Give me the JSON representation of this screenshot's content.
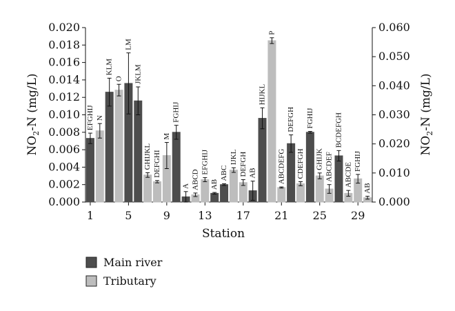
{
  "chart_data": {
    "type": "bar",
    "xlabel": "Station",
    "ylabel_left": "NO2-N (mg/L)",
    "ylabel_right": "NO2-N (mg/L)",
    "ylim_left": [
      0,
      0.02
    ],
    "ylim_right": [
      0,
      0.06
    ],
    "yticks_left": [
      "0.000",
      "0.002",
      "0.004",
      "0.006",
      "0.008",
      "0.010",
      "0.012",
      "0.014",
      "0.016",
      "0.018",
      "0.020"
    ],
    "yticks_right": [
      "0.000",
      "0.010",
      "0.020",
      "0.030",
      "0.040",
      "0.050",
      "0.060"
    ],
    "xticks": [
      "1",
      "5",
      "9",
      "13",
      "17",
      "21",
      "25",
      "29"
    ],
    "grid": false,
    "legend_position": "bottom-left",
    "series": [
      {
        "name": "Main river",
        "color": "#4d4d4d",
        "axis": "left"
      },
      {
        "name": "Tributary",
        "color": "#bdbdbd",
        "axis": "right"
      }
    ],
    "bars": [
      {
        "station": 1,
        "series": "Main river",
        "value": 0.0073,
        "err": 0.0006,
        "label": "EFGHIJ"
      },
      {
        "station": 2,
        "series": "Tributary",
        "value": 0.0245,
        "err": 0.0025,
        "label": "N"
      },
      {
        "station": 3,
        "series": "Main river",
        "value": 0.0126,
        "err": 0.0016,
        "label": "KLM"
      },
      {
        "station": 4,
        "series": "Tributary",
        "value": 0.0385,
        "err": 0.002,
        "label": "O"
      },
      {
        "station": 5,
        "series": "Main river",
        "value": 0.0136,
        "err": 0.0035,
        "label": "LM"
      },
      {
        "station": 6,
        "series": "Main river",
        "value": 0.0116,
        "err": 0.0016,
        "label": "JKLM"
      },
      {
        "station": 7,
        "series": "Tributary",
        "value": 0.0093,
        "err": 0.0008,
        "label": "GHIJKL"
      },
      {
        "station": 8,
        "series": "Tributary",
        "value": 0.007,
        "err": 0.0004,
        "label": "DEFGHI"
      },
      {
        "station": 9,
        "series": "Tributary",
        "value": 0.016,
        "err": 0.0045,
        "label": "M"
      },
      {
        "station": 10,
        "series": "Main river",
        "value": 0.008,
        "err": 0.0008,
        "label": "FGHIJ"
      },
      {
        "station": 11,
        "series": "Main river",
        "value": 0.0006,
        "err": 0.0006,
        "label": "A"
      },
      {
        "station": 12,
        "series": "Tributary",
        "value": 0.0025,
        "err": 0.0006,
        "label": "ABCD"
      },
      {
        "station": 13,
        "series": "Tributary",
        "value": 0.0077,
        "err": 0.0007,
        "label": "EFGHIJ"
      },
      {
        "station": 14,
        "series": "Main river",
        "value": 0.001,
        "err": 0.0001,
        "label": "AB"
      },
      {
        "station": 15,
        "series": "Main river",
        "value": 0.002,
        "err": 0.0001,
        "label": "ABC"
      },
      {
        "station": 16,
        "series": "Tributary",
        "value": 0.011,
        "err": 0.0008,
        "label": "IJKL"
      },
      {
        "station": 17,
        "series": "Tributary",
        "value": 0.0067,
        "err": 0.001,
        "label": "DEFGH"
      },
      {
        "station": 18,
        "series": "Main river",
        "value": 0.0013,
        "err": 0.0011,
        "label": "AB"
      },
      {
        "station": 19,
        "series": "Main river",
        "value": 0.0096,
        "err": 0.0012,
        "label": "HIJKL"
      },
      {
        "station": 20,
        "series": "Tributary",
        "value": 0.0555,
        "err": 0.001,
        "label": "P"
      },
      {
        "station": 21,
        "series": "Tributary",
        "value": 0.005,
        "err": 0.0002,
        "label": "ABCDEFG"
      },
      {
        "station": 22,
        "series": "Main river",
        "value": 0.0067,
        "err": 0.001,
        "label": "DEFGH"
      },
      {
        "station": 23,
        "series": "Tributary",
        "value": 0.0063,
        "err": 0.0007,
        "label": "CDEFGH"
      },
      {
        "station": 24,
        "series": "Main river",
        "value": 0.008,
        "err": 0.0001,
        "label": "FGHIJ"
      },
      {
        "station": 25,
        "series": "Tributary",
        "value": 0.009,
        "err": 0.001,
        "label": "GHIJK"
      },
      {
        "station": 26,
        "series": "Tributary",
        "value": 0.0045,
        "err": 0.0015,
        "label": "ABCDEF"
      },
      {
        "station": 27,
        "series": "Main river",
        "value": 0.0053,
        "err": 0.0006,
        "label": "BCDEFGH"
      },
      {
        "station": 28,
        "series": "Tributary",
        "value": 0.003,
        "err": 0.001,
        "label": "ABCDE"
      },
      {
        "station": 29,
        "series": "Tributary",
        "value": 0.008,
        "err": 0.0015,
        "label": "FGHIJ"
      },
      {
        "station": 30,
        "series": "Tributary",
        "value": 0.0015,
        "err": 0.0005,
        "label": "AB"
      }
    ]
  }
}
